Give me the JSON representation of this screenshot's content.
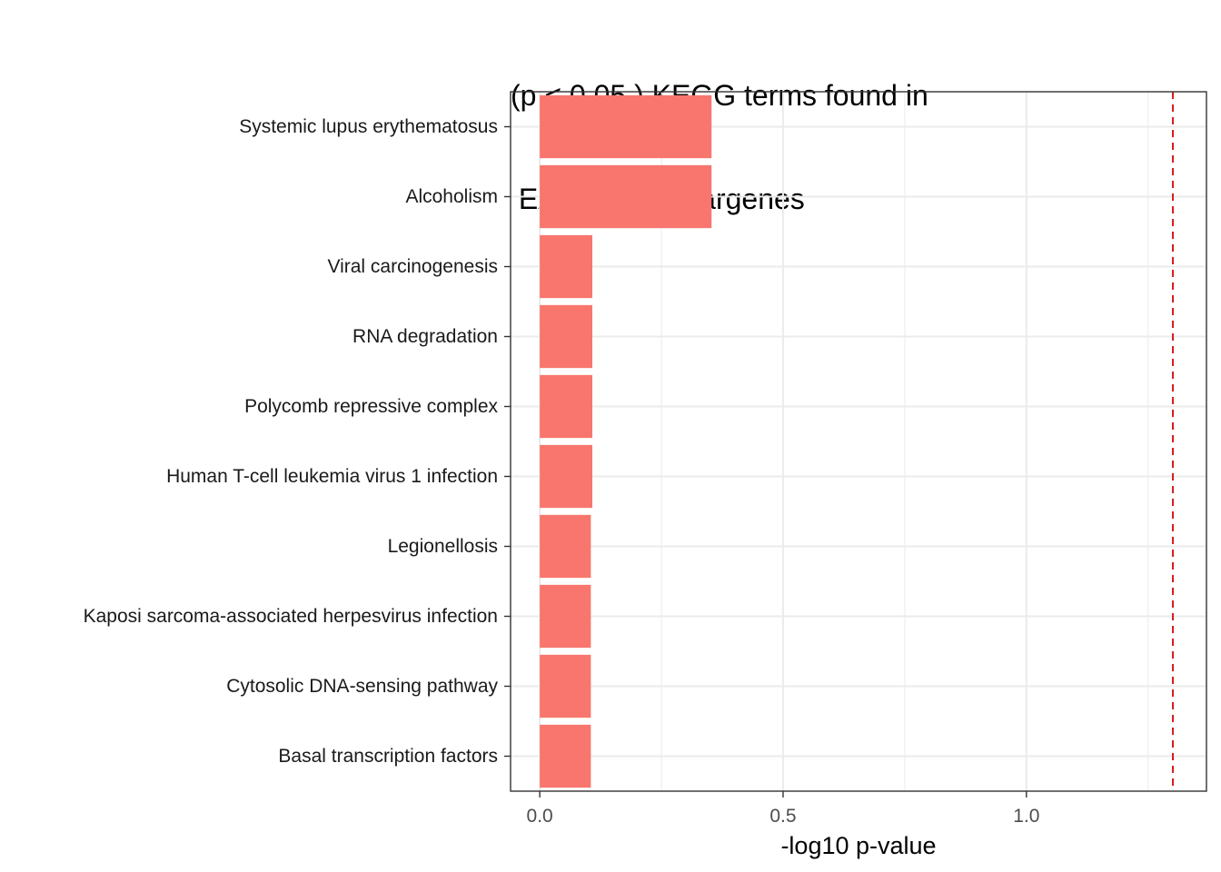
{
  "chart_data": {
    "type": "bar",
    "orientation": "horizontal",
    "title_lines": [
      "(p < 0.05 ) KEGG terms found in",
      " EAR_open neargenes"
    ],
    "xlabel": "-log10 p-value",
    "ylabel": "",
    "xlim": [
      -0.06,
      1.37
    ],
    "x_ticks": [
      0.0,
      0.5,
      1.0
    ],
    "x_tick_labels": [
      "0.0",
      "0.5",
      "1.0"
    ],
    "categories": [
      "Systemic lupus erythematosus",
      "Alcoholism",
      "Viral carcinogenesis",
      "RNA degradation",
      "Polycomb repressive complex",
      "Human T-cell leukemia virus 1 infection",
      "Legionellosis",
      "Kaposi sarcoma-associated herpesvirus infection",
      "Cytosolic DNA-sensing pathway",
      "Basal transcription factors"
    ],
    "values": [
      0.353,
      0.353,
      0.108,
      0.108,
      0.108,
      0.108,
      0.105,
      0.105,
      0.105,
      0.105
    ],
    "threshold_line": 1.301,
    "grid": true,
    "legend": "none",
    "colors": {
      "bar": "#F8766D",
      "threshold": "#D7191C",
      "grid": "#EBEBEB",
      "panel_border": "#333333"
    }
  }
}
